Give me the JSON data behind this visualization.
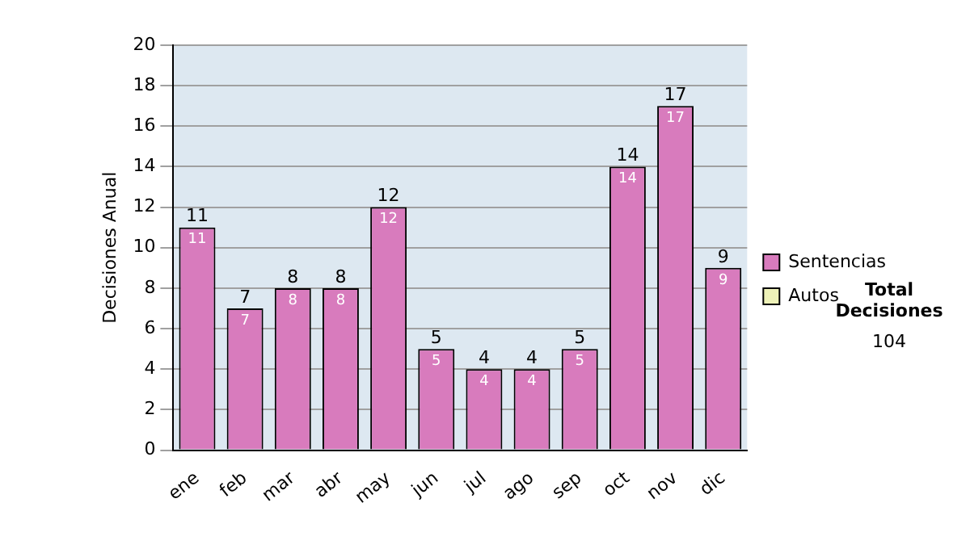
{
  "chart_data": {
    "type": "bar",
    "ylabel": "Decisiones Anual",
    "categories": [
      "ene",
      "feb",
      "mar",
      "abr",
      "may",
      "jun",
      "jul",
      "ago",
      "sep",
      "oct",
      "nov",
      "dic"
    ],
    "series": [
      {
        "name": "Sentencias",
        "color": "#d87bbd",
        "values": [
          11,
          7,
          8,
          8,
          12,
          5,
          4,
          4,
          5,
          14,
          17,
          9
        ]
      },
      {
        "name": "Autos",
        "color": "#eef2b8",
        "values": [
          null,
          null,
          null,
          null,
          null,
          null,
          null,
          null,
          null,
          null,
          null,
          null
        ]
      }
    ],
    "stacked": true,
    "ylim": [
      0,
      20
    ],
    "yticks": [
      0,
      2,
      4,
      6,
      8,
      10,
      12,
      14,
      16,
      18,
      20
    ],
    "grid": "y",
    "legend": "right",
    "data_labels": true,
    "totals": [
      "11",
      "7",
      "8",
      "8",
      "12",
      "5",
      "4",
      "4",
      "5",
      "14",
      "17",
      "9"
    ],
    "annotations": [
      "Total Decisiones",
      "104"
    ]
  }
}
